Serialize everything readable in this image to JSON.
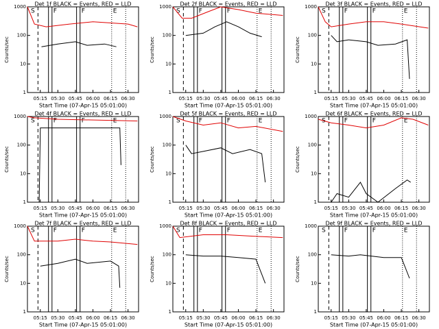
{
  "markers": [
    {
      "x": "05:13",
      "style": "dashed",
      "label": "S"
    },
    {
      "x": "05:22",
      "style": "solid"
    },
    {
      "x": "05:25",
      "style": "solid",
      "label": "F"
    },
    {
      "x": "05:46",
      "style": "solid"
    },
    {
      "x": "05:49",
      "style": "solid",
      "label": "F"
    },
    {
      "x": "06:16",
      "style": "dotted",
      "label": "E"
    },
    {
      "x": "06:28",
      "style": "dotted"
    }
  ],
  "chart_data": [
    {
      "type": "line",
      "title": "Det 1f BLACK = Events, RED = LLD",
      "y_label": "Counts/sec",
      "x_label": "Start Time (07-Apr-15 05:01:00)",
      "log_y": true,
      "xlim": [
        "05:04",
        "06:39"
      ],
      "xticks": [
        "05:15",
        "05:30",
        "05:45",
        "06:00",
        "06:15",
        "06:30"
      ],
      "ylim": [
        1,
        1000
      ],
      "yticks": [
        1,
        10,
        100,
        1000
      ],
      "series": [
        {
          "name": "BLACK",
          "color": "#000000",
          "x": [
            "05:16",
            "05:30",
            "05:45",
            "05:55",
            "06:10",
            "06:20"
          ],
          "values": [
            40,
            50,
            60,
            45,
            50,
            40
          ]
        },
        {
          "name": "RED",
          "color": "#e00000",
          "x": [
            "05:04",
            "05:10",
            "05:20",
            "05:40",
            "06:00",
            "06:30",
            "06:38"
          ],
          "values": [
            1000,
            250,
            200,
            250,
            300,
            250,
            200
          ]
        }
      ]
    },
    {
      "type": "line",
      "title": "Det 2f BLACK = Events, RED = LLD",
      "y_label": "Counts/sec",
      "x_label": "Start Time (07-Apr-15 05:01:00)",
      "log_y": true,
      "xlim": [
        "05:04",
        "06:39"
      ],
      "xticks": [
        "05:15",
        "05:30",
        "05:45",
        "06:00",
        "06:15",
        "06:30"
      ],
      "ylim": [
        1,
        1000
      ],
      "yticks": [
        1,
        10,
        100,
        1000
      ],
      "series": [
        {
          "name": "BLACK",
          "color": "#000000",
          "x": [
            "05:15",
            "05:30",
            "05:40",
            "05:50",
            "06:00",
            "06:10",
            "06:20"
          ],
          "values": [
            100,
            120,
            200,
            300,
            200,
            120,
            90
          ]
        },
        {
          "name": "RED",
          "color": "#e00000",
          "x": [
            "05:04",
            "05:12",
            "05:20",
            "05:35",
            "05:45",
            "06:00",
            "06:15",
            "06:38"
          ],
          "values": [
            1000,
            400,
            400,
            700,
            1000,
            800,
            600,
            500
          ]
        }
      ]
    },
    {
      "type": "line",
      "title": "Det 3f BLACK = Events, RED = LLD",
      "y_label": "Counts/sec",
      "x_label": "Start Time (07-Apr-15 05:01:00)",
      "log_y": true,
      "xlim": [
        "05:04",
        "06:39"
      ],
      "xticks": [
        "05:15",
        "05:30",
        "05:45",
        "06:00",
        "06:15",
        "06:30"
      ],
      "ylim": [
        1,
        1000
      ],
      "yticks": [
        1,
        10,
        100,
        1000
      ],
      "series": [
        {
          "name": "BLACK",
          "color": "#000000",
          "x": [
            "05:15",
            "05:20",
            "05:30",
            "05:45",
            "05:55",
            "06:10",
            "06:20",
            "06:22"
          ],
          "values": [
            100,
            60,
            70,
            60,
            45,
            50,
            70,
            3
          ]
        },
        {
          "name": "RED",
          "color": "#e00000",
          "x": [
            "05:04",
            "05:10",
            "05:15",
            "05:30",
            "05:45",
            "06:00",
            "06:15",
            "06:38"
          ],
          "values": [
            1000,
            300,
            200,
            250,
            300,
            300,
            250,
            180
          ]
        }
      ]
    },
    {
      "type": "line",
      "title": "Det 4f BLACK = Events, RED = LLD",
      "y_label": "Counts/sec",
      "x_label": "Start Time (07-Apr-15 05:01:00)",
      "log_y": true,
      "xlim": [
        "05:04",
        "06:39"
      ],
      "xticks": [
        "05:15",
        "05:30",
        "05:45",
        "06:00",
        "06:15",
        "06:30"
      ],
      "ylim": [
        1,
        1000
      ],
      "yticks": [
        1,
        10,
        100,
        1000
      ],
      "series": [
        {
          "name": "BLACK",
          "color": "#000000",
          "x": [
            "05:14",
            "05:15",
            "06:23",
            "06:24"
          ],
          "values": [
            1,
            400,
            400,
            20
          ]
        },
        {
          "name": "RED",
          "color": "#e00000",
          "x": [
            "05:04",
            "05:10",
            "05:30",
            "06:38"
          ],
          "values": [
            1000,
            900,
            800,
            700
          ]
        }
      ]
    },
    {
      "type": "line",
      "title": "Det 5f BLACK = Events, RED = LLD",
      "y_label": "Counts/sec",
      "x_label": "Start Time (07-Apr-15 05:01:00)",
      "log_y": true,
      "xlim": [
        "05:04",
        "06:39"
      ],
      "xticks": [
        "05:15",
        "05:30",
        "05:45",
        "06:00",
        "06:15",
        "06:30"
      ],
      "ylim": [
        1,
        1000
      ],
      "yticks": [
        1,
        10,
        100,
        1000
      ],
      "series": [
        {
          "name": "BLACK",
          "color": "#000000",
          "x": [
            "05:15",
            "05:20",
            "05:30",
            "05:45",
            "05:55",
            "06:10",
            "06:20",
            "06:23"
          ],
          "values": [
            100,
            50,
            60,
            80,
            50,
            70,
            50,
            5
          ]
        },
        {
          "name": "RED",
          "color": "#e00000",
          "x": [
            "05:04",
            "05:15",
            "05:30",
            "05:45",
            "06:00",
            "06:15",
            "06:38"
          ],
          "values": [
            1000,
            700,
            500,
            600,
            400,
            450,
            300
          ]
        }
      ]
    },
    {
      "type": "line",
      "title": "Det 6f BLACK = Events, RED = LLD",
      "y_label": "Counts/sec",
      "x_label": "Start Time (07-Apr-15 05:01:00)",
      "log_y": true,
      "xlim": [
        "05:04",
        "06:39"
      ],
      "xticks": [
        "05:15",
        "05:30",
        "05:45",
        "06:00",
        "06:15",
        "06:30"
      ],
      "ylim": [
        1,
        1000
      ],
      "yticks": [
        1,
        10,
        100,
        1000
      ],
      "series": [
        {
          "name": "BLACK",
          "color": "#000000",
          "x": [
            "05:15",
            "05:20",
            "05:30",
            "05:40",
            "05:45",
            "05:55",
            "06:10",
            "06:20",
            "06:23"
          ],
          "values": [
            1,
            2,
            1.5,
            5,
            2,
            1,
            3,
            6,
            5
          ]
        },
        {
          "name": "RED",
          "color": "#e00000",
          "x": [
            "05:04",
            "05:15",
            "05:30",
            "05:45",
            "06:00",
            "06:15",
            "06:25",
            "06:38"
          ],
          "values": [
            800,
            600,
            500,
            400,
            500,
            900,
            800,
            500
          ]
        }
      ]
    },
    {
      "type": "line",
      "title": "Det 7f BLACK = Events, RED = LLD",
      "y_label": "Counts/sec",
      "x_label": "Start Time (07-Apr-15 05:01:00)",
      "log_y": true,
      "xlim": [
        "05:04",
        "06:39"
      ],
      "xticks": [
        "05:15",
        "05:30",
        "05:45",
        "06:00",
        "06:15",
        "06:30"
      ],
      "ylim": [
        1,
        1000
      ],
      "yticks": [
        1,
        10,
        100,
        1000
      ],
      "series": [
        {
          "name": "BLACK",
          "color": "#000000",
          "x": [
            "05:15",
            "05:30",
            "05:45",
            "05:55",
            "06:15",
            "06:22",
            "06:23"
          ],
          "values": [
            40,
            50,
            70,
            50,
            60,
            40,
            7
          ]
        },
        {
          "name": "RED",
          "color": "#e00000",
          "x": [
            "05:04",
            "05:10",
            "05:30",
            "05:45",
            "06:00",
            "06:15",
            "06:38"
          ],
          "values": [
            1000,
            300,
            300,
            350,
            300,
            280,
            230
          ]
        }
      ]
    },
    {
      "type": "line",
      "title": "Det 8f BLACK = Events, RED = LLD",
      "y_label": "Counts/sec",
      "x_label": "Start Time (07-Apr-15 05:01:00)",
      "log_y": true,
      "xlim": [
        "05:04",
        "06:39"
      ],
      "xticks": [
        "05:15",
        "05:30",
        "05:45",
        "06:00",
        "06:15",
        "06:30"
      ],
      "ylim": [
        1,
        1000
      ],
      "yticks": [
        1,
        10,
        100,
        1000
      ],
      "series": [
        {
          "name": "BLACK",
          "color": "#000000",
          "x": [
            "05:15",
            "05:30",
            "05:45",
            "06:00",
            "06:15",
            "06:23"
          ],
          "values": [
            100,
            90,
            90,
            80,
            70,
            10
          ]
        },
        {
          "name": "RED",
          "color": "#e00000",
          "x": [
            "05:04",
            "05:10",
            "05:30",
            "05:50",
            "06:10",
            "06:38"
          ],
          "values": [
            1000,
            400,
            500,
            500,
            450,
            400
          ]
        }
      ]
    },
    {
      "type": "line",
      "title": "Det 9f BLACK = Events, RED = LLD",
      "y_label": "Counts/sec",
      "x_label": "Start Time (07-Apr-15 05:01:00)",
      "log_y": true,
      "xlim": [
        "05:04",
        "06:39"
      ],
      "xticks": [
        "05:15",
        "05:30",
        "05:45",
        "06:00",
        "06:15",
        "06:30"
      ],
      "ylim": [
        1,
        1000
      ],
      "yticks": [
        1,
        10,
        100,
        1000
      ],
      "series": [
        {
          "name": "BLACK",
          "color": "#000000",
          "x": [
            "05:15",
            "05:30",
            "05:40",
            "06:00",
            "06:15",
            "06:22"
          ],
          "values": [
            100,
            90,
            100,
            80,
            80,
            15
          ]
        }
      ]
    }
  ]
}
